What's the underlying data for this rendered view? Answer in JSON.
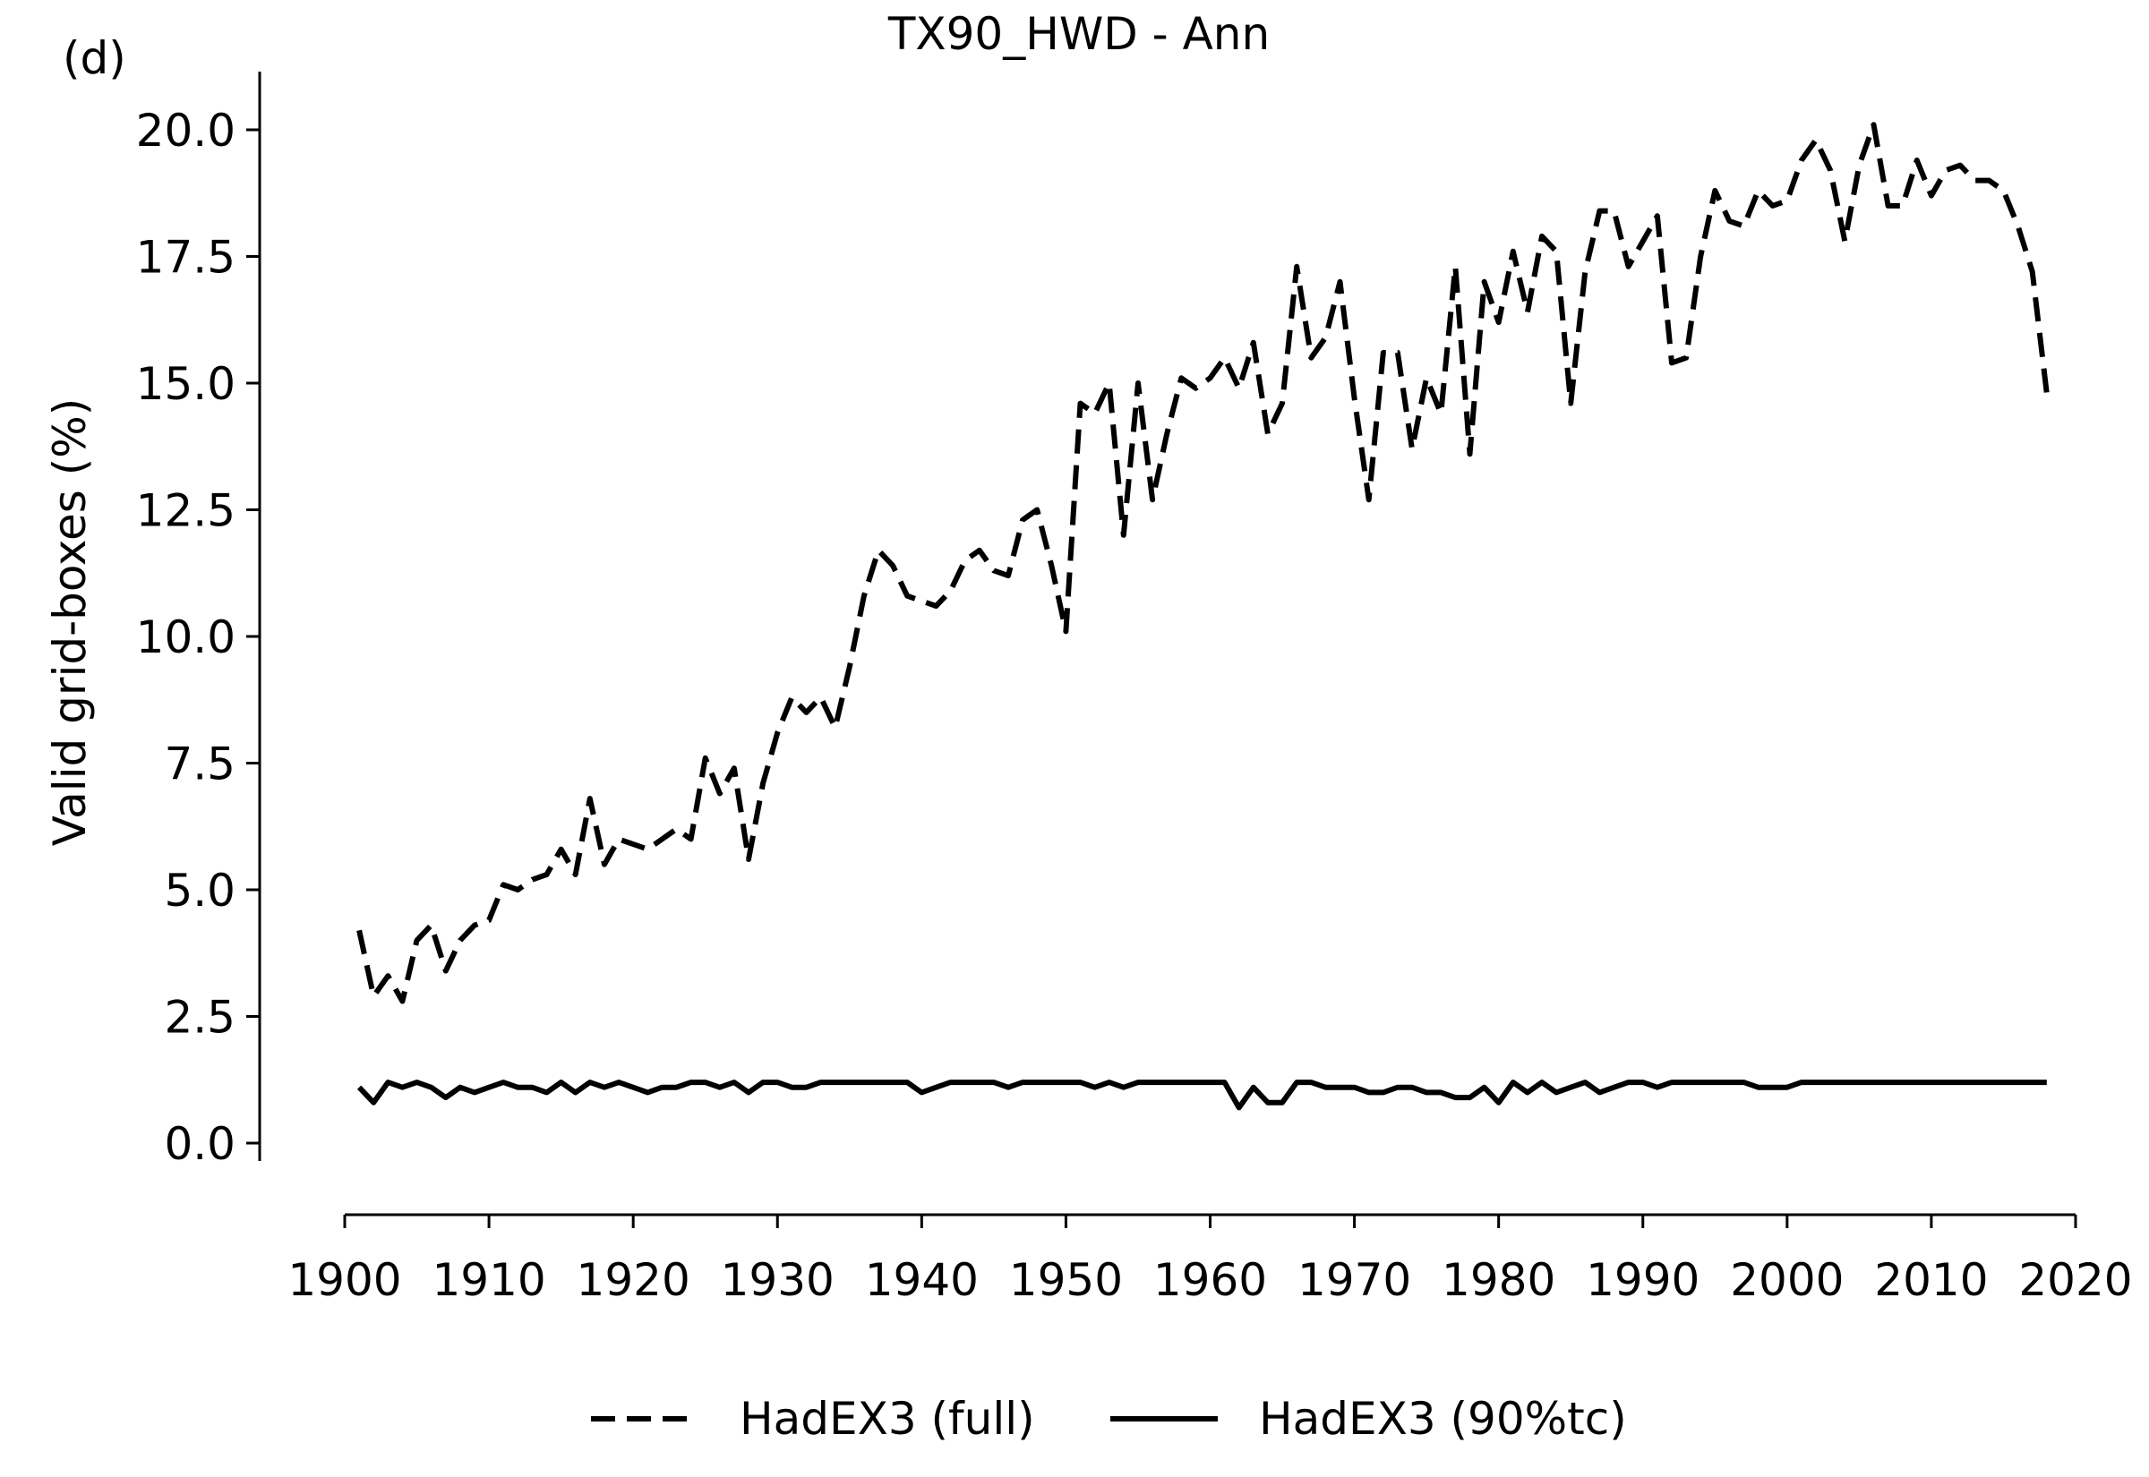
{
  "chart_data": {
    "type": "line",
    "panel_label": "(d)",
    "title": "TX90_HWD - Ann",
    "xlabel": "",
    "ylabel": "Valid grid-boxes (%)",
    "xlim": [
      1900,
      2020
    ],
    "ylim": [
      0,
      20
    ],
    "xticks": [
      1900,
      1910,
      1920,
      1930,
      1940,
      1950,
      1960,
      1970,
      1980,
      1990,
      2000,
      2010,
      2020
    ],
    "yticks": [
      0,
      2.5,
      5,
      7.5,
      10,
      12.5,
      15,
      17.5,
      20
    ],
    "xtick_labels": [
      "1900",
      "1910",
      "1920",
      "1930",
      "1940",
      "1950",
      "1960",
      "1970",
      "1980",
      "1990",
      "2000",
      "2010",
      "2020"
    ],
    "ytick_labels": [
      "0.0",
      "2.5",
      "5.0",
      "7.5",
      "10.0",
      "12.5",
      "15.0",
      "17.5",
      "20.0"
    ],
    "grid": false,
    "legend_position": "bottom-center",
    "x": [
      1901,
      1902,
      1903,
      1904,
      1905,
      1906,
      1907,
      1908,
      1909,
      1910,
      1911,
      1912,
      1913,
      1914,
      1915,
      1916,
      1917,
      1918,
      1919,
      1920,
      1921,
      1922,
      1923,
      1924,
      1925,
      1926,
      1927,
      1928,
      1929,
      1930,
      1931,
      1932,
      1933,
      1934,
      1935,
      1936,
      1937,
      1938,
      1939,
      1940,
      1941,
      1942,
      1943,
      1944,
      1945,
      1946,
      1947,
      1948,
      1949,
      1950,
      1951,
      1952,
      1953,
      1954,
      1955,
      1956,
      1957,
      1958,
      1959,
      1960,
      1961,
      1962,
      1963,
      1964,
      1965,
      1966,
      1967,
      1968,
      1969,
      1970,
      1971,
      1972,
      1973,
      1974,
      1975,
      1976,
      1977,
      1978,
      1979,
      1980,
      1981,
      1982,
      1983,
      1984,
      1985,
      1986,
      1987,
      1988,
      1989,
      1990,
      1991,
      1992,
      1993,
      1994,
      1995,
      1996,
      1997,
      1998,
      1999,
      2000,
      2001,
      2002,
      2003,
      2004,
      2005,
      2006,
      2007,
      2008,
      2009,
      2010,
      2011,
      2012,
      2013,
      2014,
      2015,
      2016,
      2017,
      2018
    ],
    "series": [
      {
        "name": "HadEX3 (full)",
        "style": "dashed",
        "color": "#000000",
        "values": [
          4.2,
          2.9,
          3.3,
          2.8,
          4.0,
          4.3,
          3.4,
          4.0,
          4.3,
          4.4,
          5.1,
          5.0,
          5.2,
          5.3,
          5.8,
          5.3,
          6.8,
          5.5,
          6.0,
          5.9,
          5.8,
          6.0,
          6.2,
          6.0,
          7.6,
          6.9,
          7.4,
          5.6,
          7.1,
          8.1,
          8.8,
          8.5,
          8.8,
          8.2,
          9.4,
          10.8,
          11.7,
          11.4,
          10.8,
          10.7,
          10.6,
          10.9,
          11.5,
          11.7,
          11.3,
          11.2,
          12.3,
          12.5,
          11.4,
          10.1,
          14.6,
          14.4,
          15.0,
          12.0,
          15.0,
          12.7,
          14.0,
          15.1,
          14.9,
          15.1,
          15.5,
          14.9,
          15.8,
          14.0,
          14.6,
          17.3,
          15.5,
          15.9,
          17.0,
          14.7,
          12.7,
          15.6,
          15.6,
          13.7,
          15.1,
          14.4,
          17.3,
          13.6,
          17.0,
          16.2,
          17.6,
          16.4,
          17.9,
          17.6,
          14.6,
          17.2,
          18.4,
          18.4,
          17.3,
          17.8,
          18.3,
          15.4,
          15.5,
          17.5,
          18.8,
          18.2,
          18.1,
          18.8,
          18.5,
          18.6,
          19.4,
          19.8,
          19.2,
          17.8,
          19.3,
          20.1,
          18.5,
          18.5,
          19.4,
          18.7,
          19.2,
          19.3,
          19.0,
          19.0,
          18.8,
          18.1,
          17.2,
          14.8
        ]
      },
      {
        "name": "HadEX3 (90%tc)",
        "style": "solid",
        "color": "#000000",
        "values": [
          1.1,
          0.8,
          1.2,
          1.1,
          1.2,
          1.1,
          0.9,
          1.1,
          1.0,
          1.1,
          1.2,
          1.1,
          1.1,
          1.0,
          1.2,
          1.0,
          1.2,
          1.1,
          1.2,
          1.1,
          1.0,
          1.1,
          1.1,
          1.2,
          1.2,
          1.1,
          1.2,
          1.0,
          1.2,
          1.2,
          1.1,
          1.1,
          1.2,
          1.2,
          1.2,
          1.2,
          1.2,
          1.2,
          1.2,
          1.0,
          1.1,
          1.2,
          1.2,
          1.2,
          1.2,
          1.1,
          1.2,
          1.2,
          1.2,
          1.2,
          1.2,
          1.1,
          1.2,
          1.1,
          1.2,
          1.2,
          1.2,
          1.2,
          1.2,
          1.2,
          1.2,
          0.7,
          1.1,
          0.8,
          0.8,
          1.2,
          1.2,
          1.1,
          1.1,
          1.1,
          1.0,
          1.0,
          1.1,
          1.1,
          1.0,
          1.0,
          0.9,
          0.9,
          1.1,
          0.8,
          1.2,
          1.0,
          1.2,
          1.0,
          1.1,
          1.2,
          1.0,
          1.1,
          1.2,
          1.2,
          1.1,
          1.2,
          1.2,
          1.2,
          1.2,
          1.2,
          1.2,
          1.1,
          1.1,
          1.1,
          1.2,
          1.2,
          1.2,
          1.2,
          1.2,
          1.2,
          1.2,
          1.2,
          1.2,
          1.2,
          1.2,
          1.2,
          1.2,
          1.2,
          1.2,
          1.2,
          1.2,
          1.2
        ]
      }
    ]
  }
}
